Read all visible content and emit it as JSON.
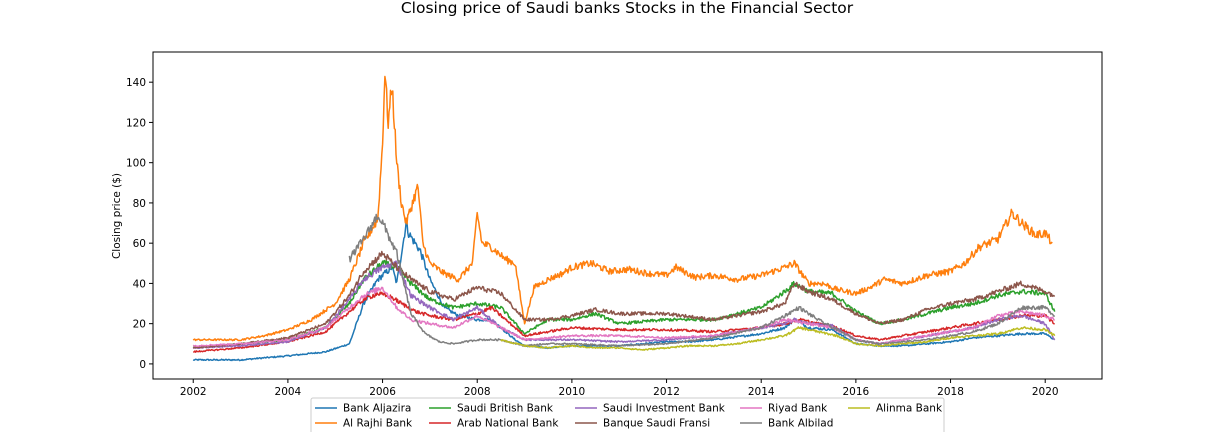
{
  "chart_data": {
    "type": "line",
    "title": "Closing price of Saudi banks Stocks in the Financial Sector",
    "xlabel": "",
    "ylabel": "Closing price ($)",
    "xlim": [
      2001.15,
      2021.2
    ],
    "ylim": [
      -7.5,
      155
    ],
    "xticks": [
      2002,
      2004,
      2006,
      2008,
      2010,
      2012,
      2014,
      2016,
      2018,
      2020
    ],
    "yticks": [
      0,
      20,
      40,
      60,
      80,
      100,
      120,
      140
    ],
    "grid": false,
    "legend_position": "bottom-center",
    "series": [
      {
        "name": "Bank Aljazira",
        "color": "#1f77b4",
        "x": [
          2002.0,
          2003.0,
          2004.0,
          2004.8,
          2005.3,
          2005.6,
          2005.9,
          2006.2,
          2006.3,
          2006.5,
          2006.55,
          2006.8,
          2007.0,
          2007.3,
          2007.6,
          2008.0,
          2008.3,
          2008.8,
          2009.0,
          2009.5,
          2010.0,
          2011.0,
          2011.5,
          2012.0,
          2012.5,
          2013.0,
          2014.0,
          2014.5,
          2014.7,
          2015.0,
          2015.5,
          2016.0,
          2016.5,
          2017.0,
          2017.5,
          2018.0,
          2018.5,
          2019.0,
          2019.5,
          2020.0,
          2020.2
        ],
        "values": [
          2,
          2,
          4,
          6,
          10,
          30,
          42,
          48,
          40,
          70,
          65,
          56,
          42,
          28,
          24,
          22,
          22,
          12,
          9,
          8,
          9,
          9,
          10,
          11,
          11,
          12,
          15,
          18,
          22,
          18,
          17,
          10,
          9,
          9,
          10,
          11,
          13,
          14,
          15,
          15,
          12
        ]
      },
      {
        "name": "Al Rajhi Bank",
        "color": "#ff7f0e",
        "x": [
          2002.0,
          2003.0,
          2003.5,
          2004.0,
          2004.5,
          2005.0,
          2005.3,
          2005.6,
          2005.9,
          2006.0,
          2006.05,
          2006.12,
          2006.2,
          2006.3,
          2006.4,
          2006.5,
          2006.7,
          2006.75,
          2006.85,
          2007.0,
          2007.3,
          2007.6,
          2007.9,
          2008.0,
          2008.1,
          2008.3,
          2008.6,
          2008.8,
          2009.0,
          2009.2,
          2009.5,
          2009.8,
          2010.0,
          2010.4,
          2010.8,
          2011.2,
          2011.6,
          2012.0,
          2012.2,
          2012.6,
          2013.0,
          2013.5,
          2014.0,
          2014.5,
          2014.7,
          2015.0,
          2015.3,
          2015.6,
          2016.0,
          2016.3,
          2016.6,
          2017.0,
          2017.5,
          2018.0,
          2018.3,
          2018.6,
          2019.0,
          2019.3,
          2019.5,
          2019.8,
          2020.0,
          2020.15
        ],
        "values": [
          12,
          12,
          14,
          17,
          22,
          30,
          42,
          60,
          72,
          110,
          145,
          120,
          139,
          100,
          80,
          70,
          85,
          88,
          60,
          50,
          45,
          42,
          50,
          75,
          60,
          58,
          52,
          50,
          20,
          38,
          42,
          45,
          48,
          50,
          46,
          47,
          45,
          44,
          48,
          43,
          44,
          42,
          44,
          48,
          50,
          40,
          40,
          37,
          35,
          38,
          42,
          40,
          44,
          46,
          50,
          58,
          62,
          75,
          70,
          64,
          65,
          60
        ]
      },
      {
        "name": "Saudi British Bank",
        "color": "#2ca02c",
        "x": [
          2002.0,
          2003.0,
          2004.0,
          2004.8,
          2005.3,
          2005.6,
          2006.0,
          2006.3,
          2006.6,
          2007.0,
          2007.5,
          2008.0,
          2008.5,
          2009.0,
          2009.5,
          2010.0,
          2010.5,
          2011.0,
          2012.0,
          2013.0,
          2014.0,
          2014.5,
          2014.7,
          2015.0,
          2015.5,
          2016.0,
          2016.5,
          2017.0,
          2017.5,
          2018.0,
          2018.5,
          2019.0,
          2019.5,
          2020.0,
          2020.2
        ],
        "values": [
          8,
          10,
          12,
          18,
          30,
          42,
          50,
          48,
          40,
          32,
          28,
          30,
          28,
          15,
          22,
          22,
          25,
          20,
          22,
          22,
          28,
          36,
          40,
          36,
          35,
          26,
          20,
          22,
          25,
          28,
          30,
          34,
          36,
          35,
          26
        ]
      },
      {
        "name": "Arab National Bank",
        "color": "#d62728",
        "x": [
          2002.0,
          2003.0,
          2004.0,
          2004.8,
          2005.3,
          2005.6,
          2005.9,
          2006.2,
          2006.4,
          2006.7,
          2007.0,
          2007.5,
          2008.0,
          2008.3,
          2008.6,
          2009.0,
          2009.5,
          2010.0,
          2011.0,
          2012.0,
          2013.0,
          2014.0,
          2014.5,
          2014.8,
          2015.2,
          2015.6,
          2016.0,
          2016.5,
          2017.0,
          2017.5,
          2018.0,
          2018.5,
          2019.0,
          2019.5,
          2020.0,
          2020.2
        ],
        "values": [
          6,
          8,
          11,
          16,
          26,
          32,
          35,
          33,
          30,
          26,
          24,
          22,
          25,
          28,
          22,
          14,
          16,
          18,
          17,
          17,
          16,
          18,
          20,
          22,
          20,
          18,
          14,
          12,
          14,
          16,
          18,
          20,
          22,
          24,
          24,
          20
        ]
      },
      {
        "name": "Saudi Investment Bank",
        "color": "#9467bd",
        "x": [
          2002.0,
          2003.0,
          2004.0,
          2004.8,
          2005.3,
          2005.6,
          2006.0,
          2006.3,
          2006.6,
          2007.0,
          2007.5,
          2008.0,
          2008.5,
          2009.0,
          2009.5,
          2010.0,
          2011.0,
          2012.0,
          2013.0,
          2014.0,
          2014.5,
          2014.7,
          2015.0,
          2015.5,
          2016.0,
          2016.5,
          2017.0,
          2017.5,
          2018.0,
          2018.5,
          2019.0,
          2019.5,
          2020.0,
          2020.2
        ],
        "values": [
          8,
          9,
          11,
          18,
          32,
          42,
          48,
          50,
          34,
          28,
          22,
          28,
          18,
          12,
          12,
          12,
          11,
          12,
          14,
          18,
          20,
          22,
          20,
          19,
          12,
          10,
          12,
          14,
          16,
          18,
          22,
          24,
          20,
          12
        ]
      },
      {
        "name": "Banque Saudi Fransi",
        "color": "#8c564b",
        "x": [
          2002.0,
          2003.0,
          2004.0,
          2004.8,
          2005.3,
          2005.6,
          2006.0,
          2006.3,
          2006.6,
          2007.0,
          2007.5,
          2008.0,
          2008.5,
          2009.0,
          2009.5,
          2010.0,
          2010.5,
          2011.0,
          2012.0,
          2013.0,
          2014.0,
          2014.5,
          2014.7,
          2015.0,
          2015.5,
          2016.0,
          2016.5,
          2017.0,
          2017.5,
          2018.0,
          2018.5,
          2019.0,
          2019.5,
          2020.0,
          2020.2
        ],
        "values": [
          8,
          10,
          13,
          20,
          34,
          46,
          55,
          48,
          42,
          36,
          32,
          38,
          35,
          22,
          22,
          24,
          27,
          25,
          25,
          22,
          26,
          30,
          40,
          36,
          32,
          25,
          20,
          22,
          27,
          30,
          32,
          36,
          40,
          36,
          34
        ]
      },
      {
        "name": "Riyad Bank",
        "color": "#e377c2",
        "x": [
          2002.0,
          2003.0,
          2004.0,
          2004.8,
          2005.3,
          2005.6,
          2006.0,
          2006.3,
          2006.6,
          2007.0,
          2007.5,
          2008.0,
          2008.5,
          2009.0,
          2009.5,
          2010.0,
          2011.0,
          2012.0,
          2013.0,
          2014.0,
          2014.5,
          2015.0,
          2015.5,
          2016.0,
          2016.5,
          2017.0,
          2017.5,
          2018.0,
          2018.5,
          2019.0,
          2019.5,
          2020.0,
          2020.2
        ],
        "values": [
          9,
          10,
          12,
          18,
          28,
          34,
          38,
          28,
          22,
          20,
          18,
          24,
          18,
          12,
          13,
          14,
          14,
          13,
          14,
          18,
          22,
          20,
          18,
          12,
          10,
          12,
          14,
          16,
          18,
          24,
          26,
          24,
          22
        ]
      },
      {
        "name": "Bank Albilad",
        "color": "#7f7f7f",
        "x": [
          2005.3,
          2005.6,
          2005.9,
          2006.0,
          2006.3,
          2006.6,
          2006.9,
          2007.2,
          2007.5,
          2008.0,
          2008.5,
          2009.0,
          2009.5,
          2010.0,
          2011.0,
          2012.0,
          2013.0,
          2014.0,
          2014.5,
          2014.8,
          2015.2,
          2016.0,
          2016.5,
          2017.0,
          2017.5,
          2018.0,
          2018.5,
          2019.0,
          2019.5,
          2020.0,
          2020.2
        ],
        "values": [
          52,
          62,
          74,
          70,
          55,
          25,
          15,
          11,
          10,
          12,
          12,
          9,
          10,
          10,
          9,
          10,
          13,
          18,
          24,
          28,
          22,
          12,
          10,
          11,
          12,
          14,
          16,
          20,
          28,
          28,
          24
        ]
      },
      {
        "name": "Alinma Bank",
        "color": "#bcbd22",
        "x": [
          2008.5,
          2009.0,
          2009.5,
          2010.0,
          2010.5,
          2011.0,
          2011.5,
          2012.0,
          2012.5,
          2013.0,
          2013.5,
          2014.0,
          2014.5,
          2014.8,
          2015.2,
          2015.6,
          2016.0,
          2016.5,
          2017.0,
          2017.5,
          2018.0,
          2018.5,
          2019.0,
          2019.5,
          2020.0,
          2020.2
        ],
        "values": [
          12,
          9,
          8,
          9,
          8,
          8,
          7,
          8,
          9,
          9,
          10,
          12,
          14,
          18,
          16,
          14,
          10,
          9,
          10,
          11,
          13,
          14,
          15,
          18,
          17,
          14
        ]
      }
    ]
  }
}
